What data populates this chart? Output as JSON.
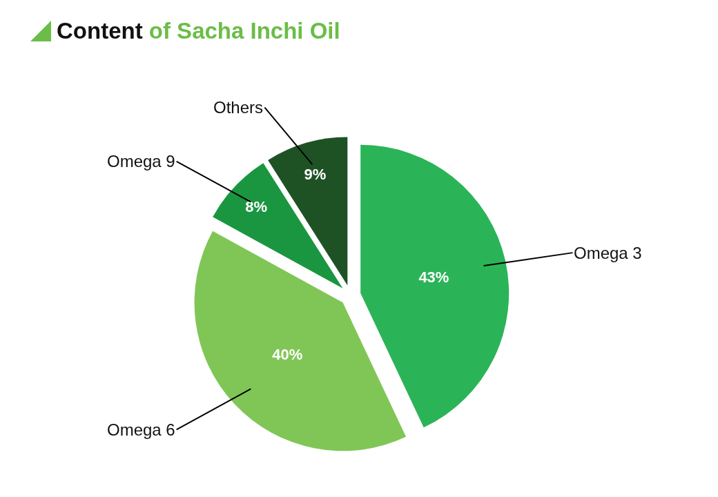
{
  "chart_data": {
    "type": "pie",
    "title": "Content of Sacha Inchi Oil",
    "categories": [
      "Omega 3",
      "Omega 6",
      "Omega 9",
      "Others"
    ],
    "values": [
      43,
      40,
      8,
      9
    ],
    "colors": [
      "#2bb457",
      "#80c656",
      "#1b9640",
      "#1e5225"
    ],
    "value_labels": [
      "43%",
      "40%",
      "8%",
      "9%"
    ],
    "legend": false
  }
}
